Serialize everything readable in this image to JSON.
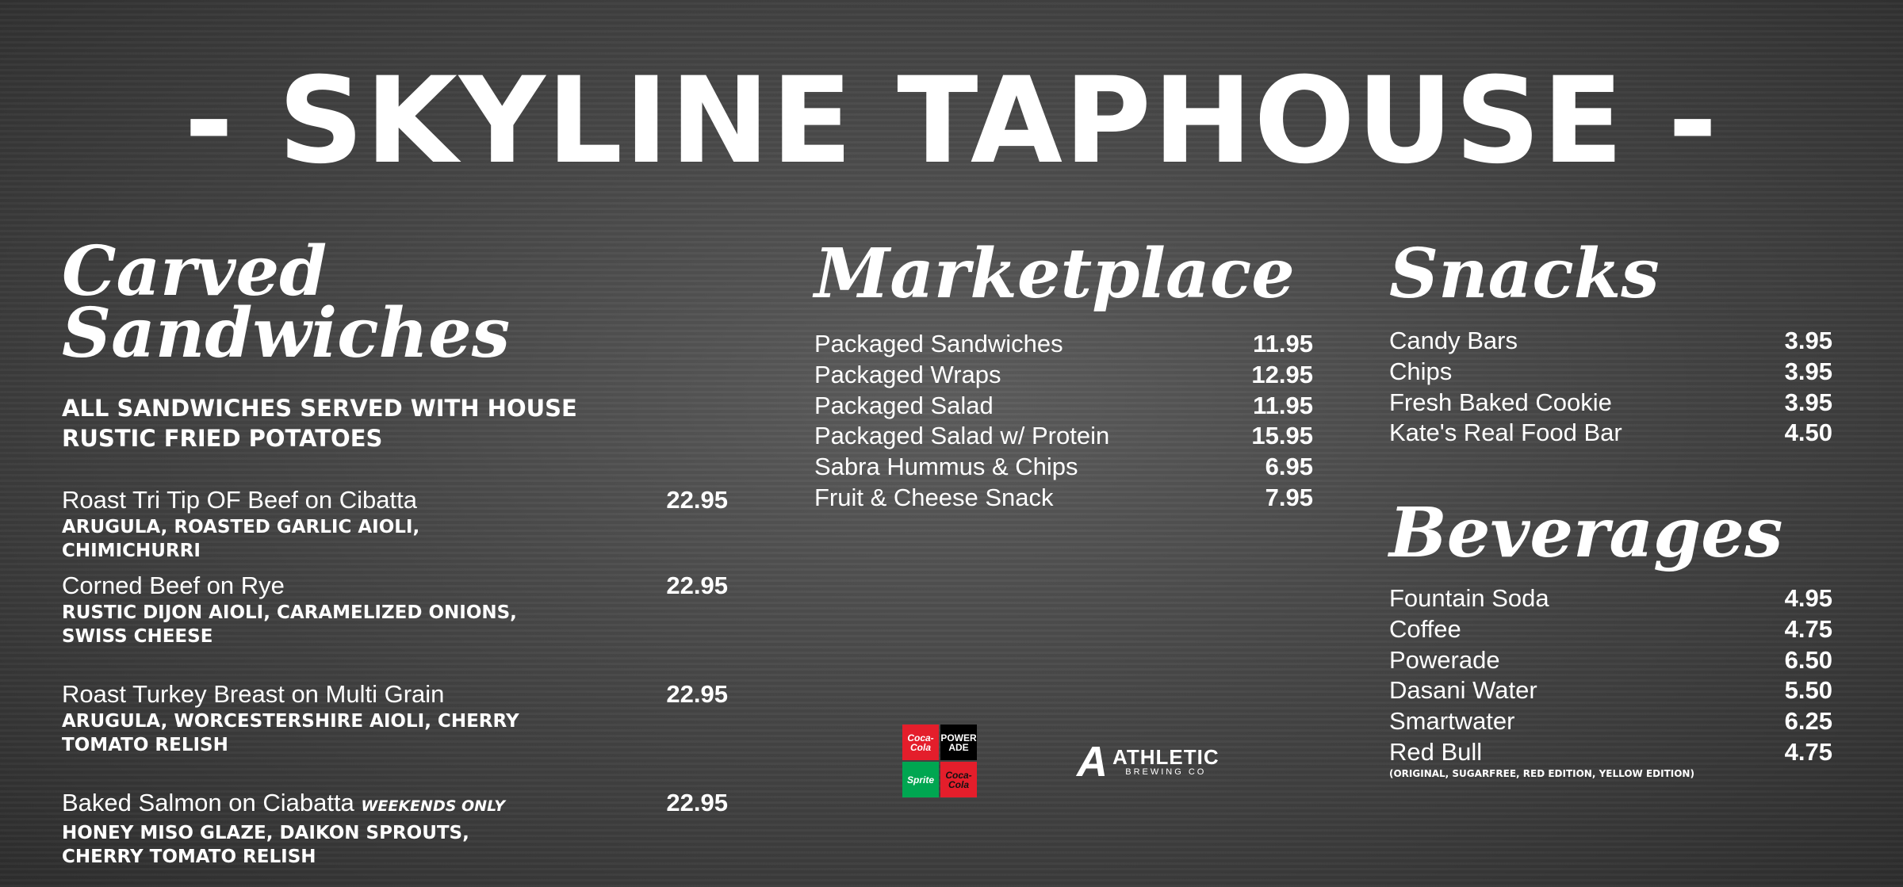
{
  "title": "- SKYLINE TAPHOUSE -",
  "carved": {
    "heading_1": "Carved",
    "heading_2": "Sandwiches",
    "subtitle": "ALL SANDWICHES SERVED WITH HOUSE RUSTIC FRIED POTATOES",
    "items": [
      {
        "name": "Roast Tri Tip OF Beef on Cibatta",
        "price": "22.95",
        "desc": "ARUGULA, ROASTED GARLIC AIOLI, CHIMICHURRI"
      },
      {
        "name": "Corned Beef on Rye",
        "price": "22.95",
        "desc": "RUSTIC DIJON AIOLI, CARAMELIZED ONIONS, SWISS CHEESE"
      },
      {
        "name": "Roast Turkey Breast on Multi Grain",
        "price": "22.95",
        "desc": "ARUGULA, WORCESTERSHIRE AIOLI, CHERRY TOMATO RELISH"
      },
      {
        "name": "Baked Salmon on Ciabatta",
        "tag": "WEEKENDS ONLY",
        "price": "22.95",
        "desc": "HONEY MISO GLAZE, DAIKON SPROUTS, CHERRY TOMATO RELISH"
      }
    ]
  },
  "marketplace": {
    "heading": "Marketplace",
    "items": [
      {
        "name": "Packaged Sandwiches",
        "price": "11.95"
      },
      {
        "name": "Packaged Wraps",
        "price": "12.95"
      },
      {
        "name": "Packaged Salad",
        "price": "11.95"
      },
      {
        "name": "Packaged Salad w/ Protein",
        "price": "15.95"
      },
      {
        "name": "Sabra Hummus & Chips",
        "price": "6.95"
      },
      {
        "name": "Fruit & Cheese Snack",
        "price": "7.95"
      }
    ]
  },
  "snacks": {
    "heading": "Snacks",
    "items": [
      {
        "name": "Candy Bars",
        "price": "3.95"
      },
      {
        "name": "Chips",
        "price": "3.95"
      },
      {
        "name": "Fresh Baked Cookie",
        "price": "3.95"
      },
      {
        "name": "Kate's Real Food Bar",
        "price": "4.50"
      }
    ]
  },
  "beverages": {
    "heading": "Beverages",
    "items": [
      {
        "name": "Fountain Soda",
        "price": "4.95"
      },
      {
        "name": "Coffee",
        "price": "4.75"
      },
      {
        "name": "Powerade",
        "price": "6.50"
      },
      {
        "name": "Dasani Water",
        "price": "5.50"
      },
      {
        "name": "Smartwater",
        "price": "6.25"
      },
      {
        "name": "Red Bull",
        "price": "4.75"
      }
    ],
    "note": "(ORIGINAL, SUGARFREE, RED EDITION, YELLOW EDITION)"
  },
  "logos": {
    "coke": "Coca-Cola",
    "powerade": "POWER ADE",
    "sprite": "Sprite",
    "coke_zero": "Coca-Cola",
    "athletic_1": "ATHLETIC",
    "athletic_2": "BREWING CO",
    "colors": {
      "red": "#e41e2b",
      "black": "#000000",
      "green": "#00a651"
    }
  }
}
